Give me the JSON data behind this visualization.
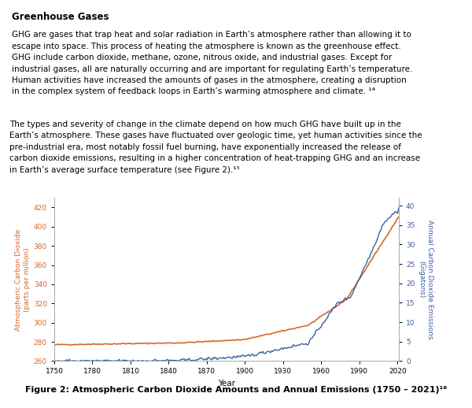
{
  "title_box_text": "Greenhouse Gases",
  "ylabel_left": "Atmospheric Carbon Dioxide\n(parts per million)",
  "ylabel_right": "Annual Carbon Dioxide Emissions\n(Gigatons)",
  "xlabel": "Year",
  "ylim_left": [
    260,
    430
  ],
  "ylim_right": [
    0,
    42
  ],
  "yticks_left": [
    260,
    280,
    300,
    320,
    340,
    360,
    380,
    400,
    420
  ],
  "yticks_right": [
    0,
    5,
    10,
    15,
    20,
    25,
    30,
    35,
    40
  ],
  "xticks": [
    1750,
    1780,
    1810,
    1840,
    1870,
    1900,
    1930,
    1960,
    1990,
    2020
  ],
  "line_co2_color": "#d4692a",
  "line_emissions_color": "#3a5fa0",
  "box_bg_color": "#c5d9e8",
  "box_border_color": "#8ab0c8",
  "fig_bg_color": "#ffffff",
  "fig_caption": "Figure 2: Atmospheric Carbon Dioxide Amounts and Annual Emissions (1750 – 2021)¹⁶"
}
